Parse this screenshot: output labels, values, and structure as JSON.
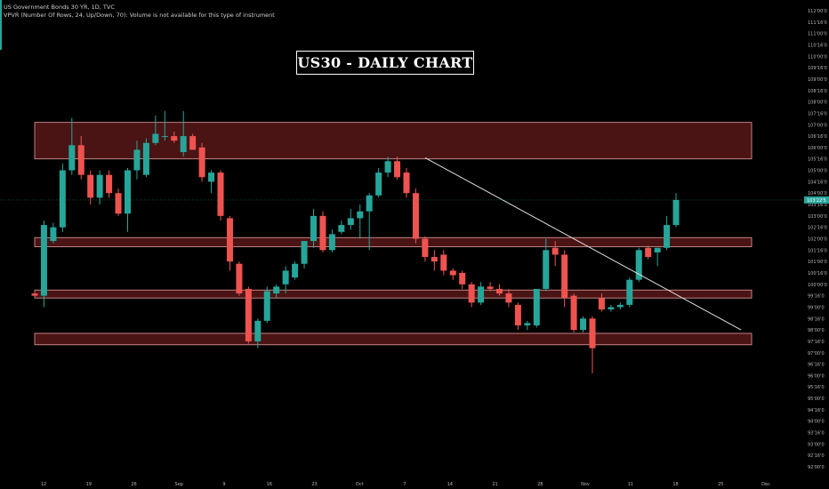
{
  "header": {
    "symbol_line": "US Government Bonds 30 YR, 1D, TVC",
    "indicator_line": "VPVR (Number Of Rows, 24, Up/Down, 70): Volume is not available for this type of instrument"
  },
  "title": "US30 - DAILY CHART",
  "colors": {
    "background": "#000000",
    "bull": "#26a69a",
    "bear": "#ef5350",
    "zone_fill": "#4a1414",
    "zone_border": "#e8a0a0",
    "trendline": "#e0e0e0",
    "price_label": "#26a69a"
  },
  "chart_data": {
    "type": "candlestick",
    "y_axis": {
      "labels": [
        "112'00'0",
        "111'16'0",
        "111'00'0",
        "110'16'0",
        "110'00'0",
        "109'16'0",
        "109'00'0",
        "108'16'0",
        "108'00'0",
        "107'16'0",
        "107'00'0",
        "106'16'0",
        "106'00'0",
        "105'16'0",
        "105'00'0",
        "104'16'0",
        "104'00'0",
        "103'16'0",
        "103'00'0",
        "102'16'0",
        "102'00'0",
        "101'16'0",
        "101'00'0",
        "100'16'0",
        "100'00'0",
        "99'16'0",
        "99'00'0",
        "98'16'0",
        "98'00'0",
        "97'16'0",
        "97'00'0",
        "96'16'0",
        "96'00'0",
        "95'16'0",
        "95'00'0",
        "94'16'0",
        "94'00'0",
        "93'16'0",
        "93'00'0",
        "92'16'0",
        "92'00'0"
      ],
      "max": 112.0,
      "min": 92.0,
      "step": 0.5,
      "current_price_label": "103'22'5",
      "current_price": 103.7
    },
    "x_axis": {
      "labels": [
        "12",
        "19",
        "26",
        "Sep",
        "9",
        "16",
        "23",
        "Oct",
        "7",
        "14",
        "21",
        "28",
        "Nov",
        "11",
        "18",
        "25",
        "Dec"
      ]
    },
    "zones": [
      {
        "top": 107.1,
        "bottom": 105.5
      },
      {
        "top": 102.05,
        "bottom": 101.65
      },
      {
        "top": 99.75,
        "bottom": 99.4
      },
      {
        "top": 97.85,
        "bottom": 97.35
      }
    ],
    "trendline": {
      "from_bar": 42,
      "from_price": 105.55,
      "to_bar": 76,
      "to_price": 98.0
    },
    "candles": [
      {
        "o": 99.6,
        "h": 99.7,
        "l": 99.5,
        "c": 99.5
      },
      {
        "o": 99.5,
        "h": 102.8,
        "l": 99.0,
        "c": 102.6
      },
      {
        "o": 101.9,
        "h": 102.7,
        "l": 101.8,
        "c": 102.5
      },
      {
        "o": 102.5,
        "h": 105.3,
        "l": 102.3,
        "c": 105.0
      },
      {
        "o": 105.0,
        "h": 107.3,
        "l": 104.8,
        "c": 106.1
      },
      {
        "o": 106.1,
        "h": 106.5,
        "l": 104.6,
        "c": 104.8
      },
      {
        "o": 104.8,
        "h": 105.0,
        "l": 103.5,
        "c": 103.8
      },
      {
        "o": 103.8,
        "h": 105.0,
        "l": 103.5,
        "c": 104.8
      },
      {
        "o": 104.8,
        "h": 105.0,
        "l": 103.8,
        "c": 104.0
      },
      {
        "o": 104.0,
        "h": 104.2,
        "l": 103.0,
        "c": 103.1
      },
      {
        "o": 103.1,
        "h": 105.1,
        "l": 102.3,
        "c": 105.0
      },
      {
        "o": 105.0,
        "h": 106.3,
        "l": 104.6,
        "c": 105.9
      },
      {
        "o": 104.8,
        "h": 106.4,
        "l": 104.7,
        "c": 106.2
      },
      {
        "o": 106.2,
        "h": 107.4,
        "l": 106.1,
        "c": 106.6
      },
      {
        "o": 106.5,
        "h": 107.6,
        "l": 106.3,
        "c": 106.5
      },
      {
        "o": 106.5,
        "h": 106.7,
        "l": 106.2,
        "c": 106.3
      },
      {
        "o": 105.8,
        "h": 107.6,
        "l": 105.6,
        "c": 106.5
      },
      {
        "o": 106.5,
        "h": 106.6,
        "l": 106.0,
        "c": 105.9
      },
      {
        "o": 106.0,
        "h": 106.2,
        "l": 104.5,
        "c": 104.7
      },
      {
        "o": 104.5,
        "h": 105.0,
        "l": 104.0,
        "c": 104.9
      },
      {
        "o": 104.9,
        "h": 105.0,
        "l": 102.8,
        "c": 103.0
      },
      {
        "o": 102.9,
        "h": 103.0,
        "l": 100.6,
        "c": 101.0
      },
      {
        "o": 100.9,
        "h": 101.0,
        "l": 99.5,
        "c": 99.6
      },
      {
        "o": 99.8,
        "h": 99.9,
        "l": 97.4,
        "c": 97.5
      },
      {
        "o": 97.5,
        "h": 98.5,
        "l": 97.2,
        "c": 98.4
      },
      {
        "o": 98.4,
        "h": 99.9,
        "l": 98.3,
        "c": 99.7
      },
      {
        "o": 99.6,
        "h": 100.0,
        "l": 99.4,
        "c": 99.9
      },
      {
        "o": 100.0,
        "h": 100.8,
        "l": 99.6,
        "c": 100.6
      },
      {
        "o": 100.3,
        "h": 101.0,
        "l": 100.2,
        "c": 100.9
      },
      {
        "o": 100.9,
        "h": 101.9,
        "l": 100.7,
        "c": 101.9
      },
      {
        "o": 101.9,
        "h": 103.3,
        "l": 101.6,
        "c": 103.0
      },
      {
        "o": 103.0,
        "h": 103.2,
        "l": 101.4,
        "c": 101.5
      },
      {
        "o": 101.5,
        "h": 102.4,
        "l": 101.4,
        "c": 102.2
      },
      {
        "o": 102.3,
        "h": 102.8,
        "l": 102.2,
        "c": 102.6
      },
      {
        "o": 102.6,
        "h": 103.3,
        "l": 102.4,
        "c": 102.9
      },
      {
        "o": 102.9,
        "h": 103.5,
        "l": 102.0,
        "c": 103.2
      },
      {
        "o": 103.2,
        "h": 104.0,
        "l": 101.5,
        "c": 103.9
      },
      {
        "o": 103.9,
        "h": 105.1,
        "l": 103.8,
        "c": 104.9
      },
      {
        "o": 104.9,
        "h": 105.6,
        "l": 104.7,
        "c": 105.4
      },
      {
        "o": 105.4,
        "h": 105.6,
        "l": 104.6,
        "c": 104.7
      },
      {
        "o": 104.9,
        "h": 105.1,
        "l": 103.8,
        "c": 104.0
      },
      {
        "o": 104.0,
        "h": 104.2,
        "l": 101.8,
        "c": 102.0
      },
      {
        "o": 102.0,
        "h": 102.1,
        "l": 101.0,
        "c": 101.2
      },
      {
        "o": 101.2,
        "h": 101.5,
        "l": 100.6,
        "c": 101.0
      },
      {
        "o": 101.3,
        "h": 101.5,
        "l": 100.4,
        "c": 100.6
      },
      {
        "o": 100.6,
        "h": 100.7,
        "l": 100.2,
        "c": 100.4
      },
      {
        "o": 100.5,
        "h": 100.6,
        "l": 99.8,
        "c": 100.0
      },
      {
        "o": 100.0,
        "h": 100.1,
        "l": 99.0,
        "c": 99.2
      },
      {
        "o": 99.2,
        "h": 100.1,
        "l": 99.1,
        "c": 99.9
      },
      {
        "o": 99.9,
        "h": 100.1,
        "l": 99.7,
        "c": 99.8
      },
      {
        "o": 99.8,
        "h": 100.0,
        "l": 99.5,
        "c": 99.6
      },
      {
        "o": 99.6,
        "h": 99.8,
        "l": 99.0,
        "c": 99.2
      },
      {
        "o": 99.1,
        "h": 99.2,
        "l": 98.0,
        "c": 98.2
      },
      {
        "o": 98.2,
        "h": 98.4,
        "l": 98.0,
        "c": 98.3
      },
      {
        "o": 98.2,
        "h": 99.8,
        "l": 98.1,
        "c": 99.8
      },
      {
        "o": 99.8,
        "h": 102.0,
        "l": 99.7,
        "c": 101.5
      },
      {
        "o": 101.6,
        "h": 101.9,
        "l": 100.8,
        "c": 101.3
      },
      {
        "o": 101.3,
        "h": 101.5,
        "l": 99.0,
        "c": 99.4
      },
      {
        "o": 99.5,
        "h": 99.6,
        "l": 97.9,
        "c": 98.0
      },
      {
        "o": 98.0,
        "h": 98.6,
        "l": 97.9,
        "c": 98.5
      },
      {
        "o": 98.5,
        "h": 98.6,
        "l": 96.1,
        "c": 97.2
      },
      {
        "o": 99.4,
        "h": 99.6,
        "l": 98.8,
        "c": 98.9
      },
      {
        "o": 98.9,
        "h": 99.1,
        "l": 98.8,
        "c": 99.0
      },
      {
        "o": 99.0,
        "h": 99.2,
        "l": 98.9,
        "c": 99.1
      },
      {
        "o": 99.1,
        "h": 100.3,
        "l": 99.0,
        "c": 100.2
      },
      {
        "o": 100.2,
        "h": 101.6,
        "l": 100.1,
        "c": 101.5
      },
      {
        "o": 101.6,
        "h": 101.7,
        "l": 101.1,
        "c": 101.2
      },
      {
        "o": 101.4,
        "h": 101.6,
        "l": 100.8,
        "c": 101.6
      },
      {
        "o": 101.6,
        "h": 103.0,
        "l": 101.5,
        "c": 102.6
      },
      {
        "o": 102.6,
        "h": 104.0,
        "l": 102.5,
        "c": 103.7
      }
    ]
  }
}
